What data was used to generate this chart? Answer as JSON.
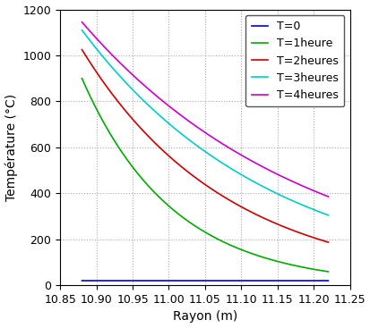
{
  "xlabel": "Rayon (m)",
  "ylabel": "Température (°C)",
  "xlim": [
    10.85,
    11.25
  ],
  "ylim": [
    0,
    1200
  ],
  "xticks": [
    10.85,
    10.9,
    10.95,
    11.0,
    11.05,
    11.1,
    11.15,
    11.2,
    11.25
  ],
  "yticks": [
    0,
    200,
    400,
    600,
    800,
    1000,
    1200
  ],
  "r_inner": 10.88,
  "r_outer": 11.22,
  "curves": [
    {
      "label": "T=0",
      "color": "#0000dd",
      "T_peak": 20,
      "decay": 0.0001
    },
    {
      "label": "T=1heure",
      "color": "#00aa00",
      "T_peak": 900,
      "decay": 8.0
    },
    {
      "label": "T=2heures",
      "color": "#cc0000",
      "T_peak": 1025,
      "decay": 5.0
    },
    {
      "label": "T=3heures",
      "color": "#00cccc",
      "T_peak": 1110,
      "decay": 3.8
    },
    {
      "label": "T=4heures",
      "color": "#cc00cc",
      "T_peak": 1145,
      "decay": 3.2
    }
  ],
  "background_color": "#ffffff",
  "grid_color": "#aaaaaa"
}
